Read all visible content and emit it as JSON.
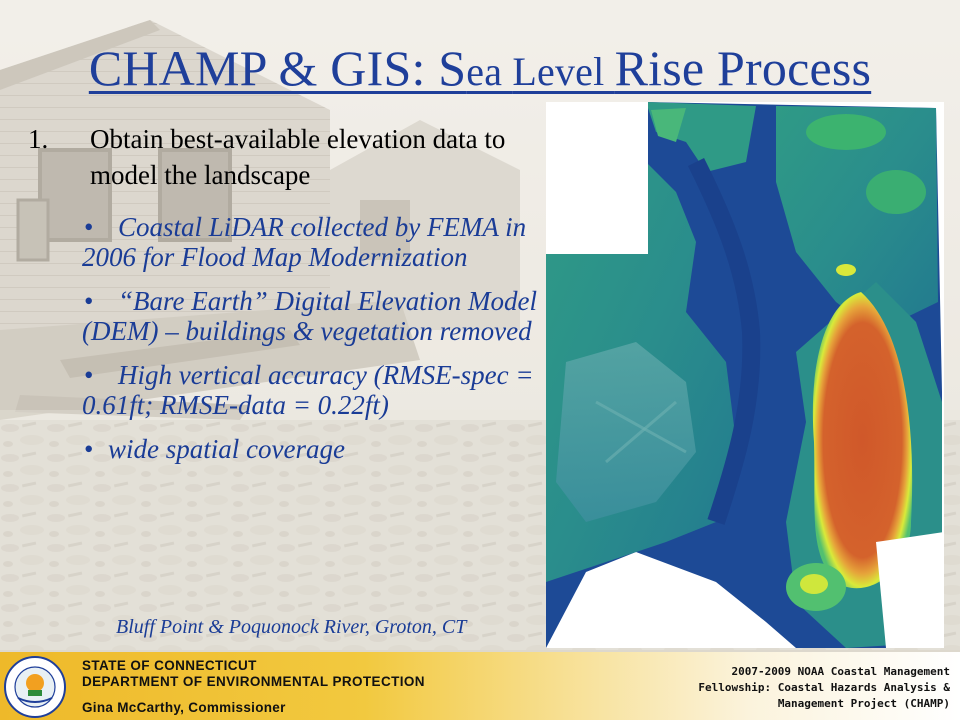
{
  "title": {
    "part1": "CHAMP & GIS: S",
    "part2": "ea ",
    "part3": "Level ",
    "part4": "Rise Process"
  },
  "step": {
    "number": "1.",
    "text": "Obtain best-available elevation data to model the landscape"
  },
  "bullets": [
    "Coastal LiDAR collected by FEMA in 2006 for Flood Map Modernization",
    "“Bare Earth” Digital Elevation Model (DEM) – buildings & vegetation removed",
    "High vertical accuracy (RMSE-spec = 0.61ft; RMSE-data = 0.22ft)",
    "wide spatial coverage"
  ],
  "bullet_symbol": "•",
  "map_caption": "Bluff Point & Poquonock River, Groton, CT",
  "footer": {
    "agency_line1": "STATE OF CONNECTICUT",
    "agency_line2": "DEPARTMENT OF ENVIRONMENTAL PROTECTION",
    "commissioner": "Gina McCarthy, Commissioner",
    "fellowship_line1": "2007-2009 NOAA Coastal Management",
    "fellowship_line2": "Fellowship: Coastal Hazards Analysis &",
    "fellowship_line3": "Management Project (CHAMP)"
  },
  "colors": {
    "title": "#1f3f9a",
    "bullet_text": "#1a3c96",
    "footer_gold": "#eeb92a",
    "elev_water": "#1d4a96",
    "elev_low": "#1d8a8e",
    "elev_mid": "#3cb373",
    "elev_high": "#d8e83a",
    "elev_peak": "#cf5a2a"
  },
  "icons": {
    "seal": "dep-seal-icon",
    "background": "damaged-house-photo"
  }
}
